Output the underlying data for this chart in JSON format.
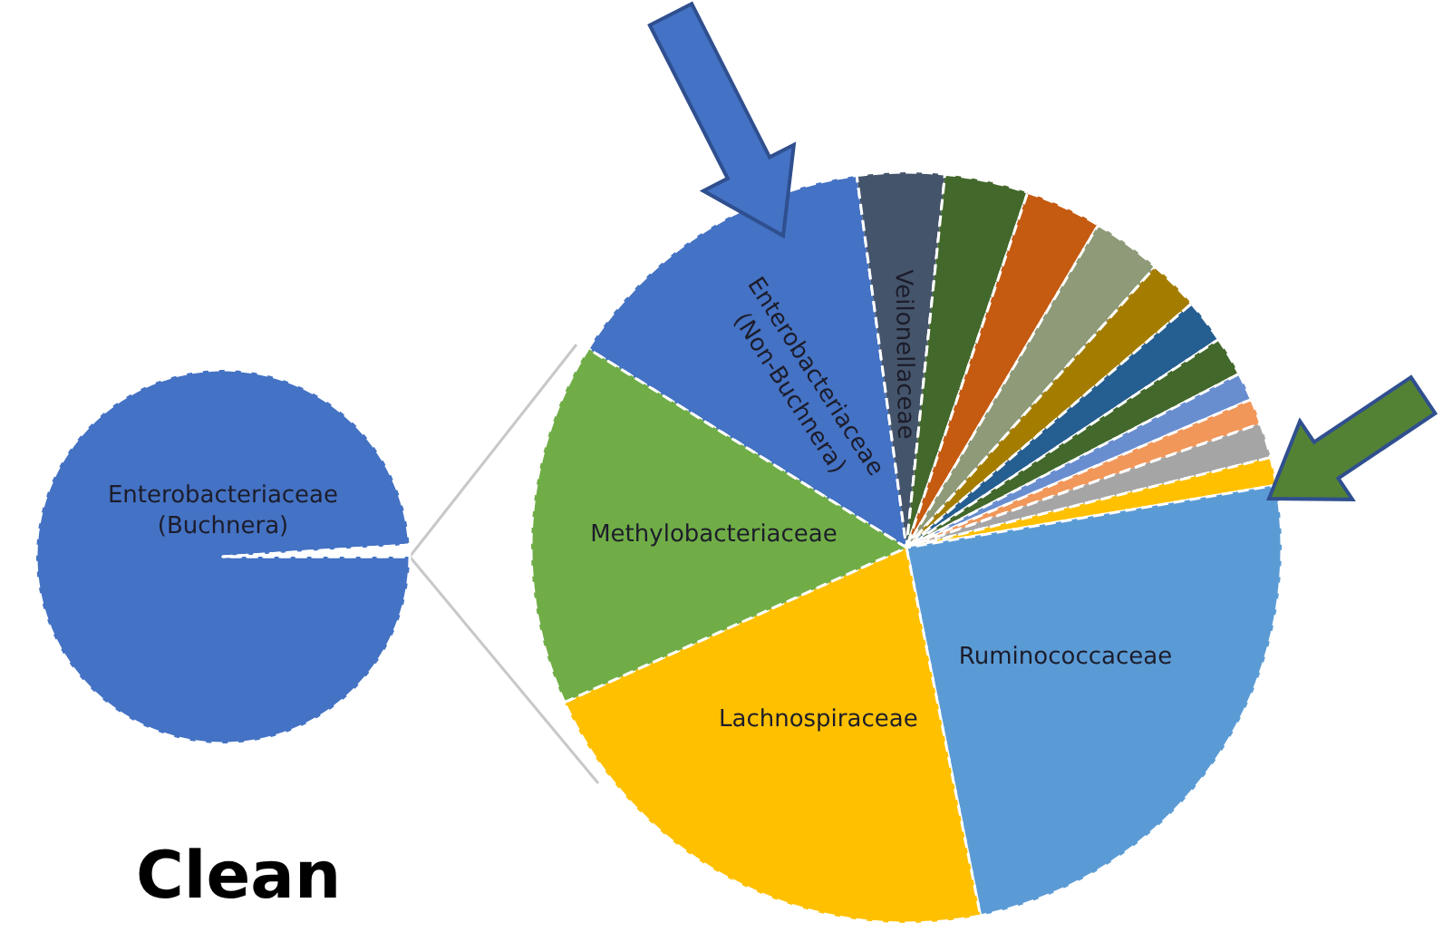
{
  "chart_data": [
    {
      "type": "pie",
      "categories": [
        "Enterobacteriaceae\n(Buchnera)",
        null
      ],
      "values": [
        99,
        1
      ],
      "colors": [
        "#4472c4",
        "#ffffff"
      ],
      "annotations": [
        "Clean"
      ]
    },
    {
      "type": "pie",
      "categories": [
        "Enterobacteriaceae\n(Non-Buchnera)",
        "Veilonellaceae",
        null,
        null,
        null,
        null,
        null,
        null,
        null,
        null,
        null,
        null,
        "Ruminococcaceae",
        "Lachnospiraceae",
        "Methylobacteriaceae"
      ],
      "values": [
        14,
        3.75,
        3.6,
        3.3,
        3,
        2.2,
        1.9,
        1.7,
        1.2,
        1.1,
        1.5,
        1.2,
        24.5,
        21.4,
        15.65
      ],
      "colors": [
        "#4472c4",
        "#44546a",
        "#43682b",
        "#c55a11",
        "#8e9a78",
        "#a47d00",
        "#255e91",
        "#43682b",
        "#698ed0",
        "#f1975a",
        "#a5a5a5",
        "#ffc000",
        "#5b9bd5",
        "#ffc000",
        "#70ad47"
      ]
    }
  ]
}
